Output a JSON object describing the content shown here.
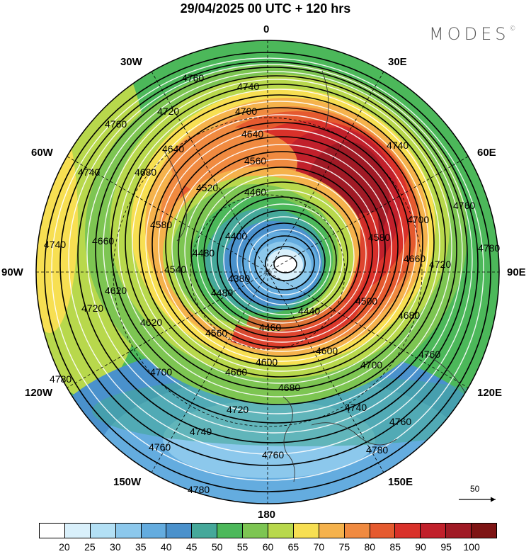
{
  "title": "29/04/2025  00 UTC  + 120 hrs",
  "brand": "MODES",
  "brand_mark": "©",
  "longitudes": {
    "top": "0",
    "bottom": "180",
    "left": "90W",
    "right": "90E",
    "w30": "30W",
    "e30": "30E",
    "w60": "60W",
    "e60": "60E",
    "w120": "120W",
    "e120": "120E",
    "w150": "150W",
    "e150": "150E"
  },
  "reference_vector": "50",
  "contour_labels": [
    "4780",
    "4760",
    "4740",
    "4720",
    "4700",
    "4680",
    "4660",
    "4640",
    "4620",
    "4600",
    "4580",
    "4560",
    "4540",
    "4520",
    "4500",
    "4480",
    "4460",
    "4440",
    "4420",
    "4400",
    "4380"
  ],
  "colorbar": {
    "colors": [
      "#ffffff",
      "#d9f0fb",
      "#b3e0f5",
      "#8cc8ec",
      "#64acdf",
      "#4a91cc",
      "#45a89a",
      "#4cb85a",
      "#7dc552",
      "#b8d84c",
      "#f7df52",
      "#f5b24c",
      "#f08a40",
      "#e55a2f",
      "#d9312a",
      "#c1202b",
      "#a01a25",
      "#7e1414"
    ],
    "labels": [
      "20",
      "25",
      "30",
      "35",
      "40",
      "45",
      "50",
      "55",
      "60",
      "65",
      "70",
      "75",
      "80",
      "85",
      "90",
      "95",
      "100"
    ]
  }
}
